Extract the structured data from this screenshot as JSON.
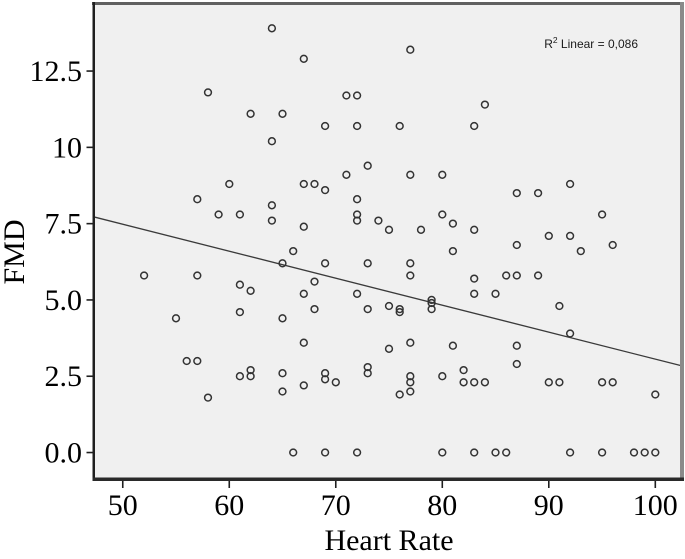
{
  "figure": {
    "annotation": {
      "full_text": "R2 Linear = 0,086",
      "r": "R",
      "sup": "2",
      "rest": " Linear = 0,086"
    }
  },
  "chart_data": {
    "type": "scatter",
    "title": "",
    "xlabel": "Heart Rate",
    "ylabel": "FMD",
    "x_ticks": [
      50,
      60,
      70,
      80,
      90,
      100
    ],
    "x_tick_labels": [
      "50",
      "60",
      "70",
      "80",
      "90",
      "100"
    ],
    "y_ticks": [
      0,
      2.5,
      5,
      7.5,
      10,
      12.5
    ],
    "y_tick_labels": [
      "0.0",
      "2.5",
      "5.0",
      "7.5",
      "10",
      "12.5"
    ],
    "xlim": [
      47.3,
      102.6
    ],
    "ylim": [
      -0.9,
      14.73
    ],
    "grid": false,
    "legend_position": "none",
    "plot_background": "#f0f0f0",
    "marker_style": "open-circle",
    "marker_color": "#333333",
    "line_color": "#3a3a3a",
    "annotation": "R2 Linear = 0,086",
    "regression_line": {
      "x1": 47.3,
      "y1": 7.72,
      "x2": 102.6,
      "y2": 2.83,
      "r_squared": "0,086"
    },
    "points": [
      [
        64,
        13.9
      ],
      [
        77,
        13.2
      ],
      [
        67,
        12.9
      ],
      [
        58,
        11.8
      ],
      [
        71,
        11.7
      ],
      [
        72,
        11.7
      ],
      [
        84,
        11.4
      ],
      [
        62,
        11.1
      ],
      [
        65,
        11.1
      ],
      [
        69,
        10.7
      ],
      [
        72,
        10.7
      ],
      [
        76,
        10.7
      ],
      [
        83,
        10.7
      ],
      [
        64,
        10.2
      ],
      [
        73,
        9.4
      ],
      [
        71,
        9.1
      ],
      [
        77,
        9.1
      ],
      [
        80,
        9.1
      ],
      [
        60,
        8.8
      ],
      [
        67,
        8.8
      ],
      [
        68,
        8.8
      ],
      [
        92,
        8.8
      ],
      [
        69,
        8.6
      ],
      [
        87,
        8.5
      ],
      [
        89,
        8.5
      ],
      [
        57,
        8.3
      ],
      [
        72,
        8.3
      ],
      [
        64,
        8.1
      ],
      [
        59,
        7.8
      ],
      [
        61,
        7.8
      ],
      [
        72,
        7.8
      ],
      [
        80,
        7.8
      ],
      [
        95,
        7.8
      ],
      [
        64,
        7.6
      ],
      [
        72,
        7.6
      ],
      [
        74,
        7.6
      ],
      [
        81,
        7.5
      ],
      [
        67,
        7.4
      ],
      [
        75,
        7.3
      ],
      [
        78,
        7.3
      ],
      [
        83,
        7.3
      ],
      [
        90,
        7.1
      ],
      [
        92,
        7.1
      ],
      [
        87,
        6.8
      ],
      [
        96,
        6.8
      ],
      [
        66,
        6.6
      ],
      [
        81,
        6.6
      ],
      [
        93,
        6.6
      ],
      [
        65,
        6.2
      ],
      [
        69,
        6.2
      ],
      [
        73,
        6.2
      ],
      [
        77,
        6.2
      ],
      [
        52,
        5.8
      ],
      [
        57,
        5.8
      ],
      [
        77,
        5.8
      ],
      [
        86,
        5.8
      ],
      [
        87,
        5.8
      ],
      [
        89,
        5.8
      ],
      [
        83,
        5.7
      ],
      [
        68,
        5.6
      ],
      [
        61,
        5.5
      ],
      [
        62,
        5.3
      ],
      [
        67,
        5.2
      ],
      [
        72,
        5.2
      ],
      [
        83,
        5.2
      ],
      [
        85,
        5.2
      ],
      [
        79,
        5.0
      ],
      [
        79,
        4.9
      ],
      [
        91,
        4.8
      ],
      [
        75,
        4.8
      ],
      [
        68,
        4.7
      ],
      [
        73,
        4.7
      ],
      [
        76,
        4.7
      ],
      [
        79,
        4.7
      ],
      [
        76,
        4.6
      ],
      [
        61,
        4.6
      ],
      [
        55,
        4.4
      ],
      [
        65,
        4.4
      ],
      [
        92,
        3.9
      ],
      [
        67,
        3.6
      ],
      [
        77,
        3.6
      ],
      [
        81,
        3.5
      ],
      [
        87,
        3.5
      ],
      [
        75,
        3.4
      ],
      [
        56,
        3.0
      ],
      [
        57,
        3.0
      ],
      [
        87,
        2.9
      ],
      [
        73,
        2.8
      ],
      [
        82,
        2.7
      ],
      [
        62,
        2.7
      ],
      [
        69,
        2.6
      ],
      [
        73,
        2.6
      ],
      [
        65,
        2.6
      ],
      [
        61,
        2.5
      ],
      [
        62,
        2.5
      ],
      [
        77,
        2.5
      ],
      [
        80,
        2.5
      ],
      [
        69,
        2.4
      ],
      [
        67,
        2.2
      ],
      [
        70,
        2.3
      ],
      [
        77,
        2.3
      ],
      [
        82,
        2.3
      ],
      [
        83,
        2.3
      ],
      [
        84,
        2.3
      ],
      [
        90,
        2.3
      ],
      [
        91,
        2.3
      ],
      [
        95,
        2.3
      ],
      [
        96,
        2.3
      ],
      [
        65,
        2.0
      ],
      [
        77,
        2.0
      ],
      [
        76,
        1.9
      ],
      [
        100,
        1.9
      ],
      [
        58,
        1.8
      ],
      [
        66,
        0
      ],
      [
        69,
        0
      ],
      [
        72,
        0
      ],
      [
        80,
        0
      ],
      [
        83,
        0
      ],
      [
        85,
        0
      ],
      [
        86,
        0
      ],
      [
        92,
        0
      ],
      [
        95,
        0
      ],
      [
        98,
        0
      ],
      [
        99,
        0
      ],
      [
        100,
        0
      ]
    ]
  }
}
